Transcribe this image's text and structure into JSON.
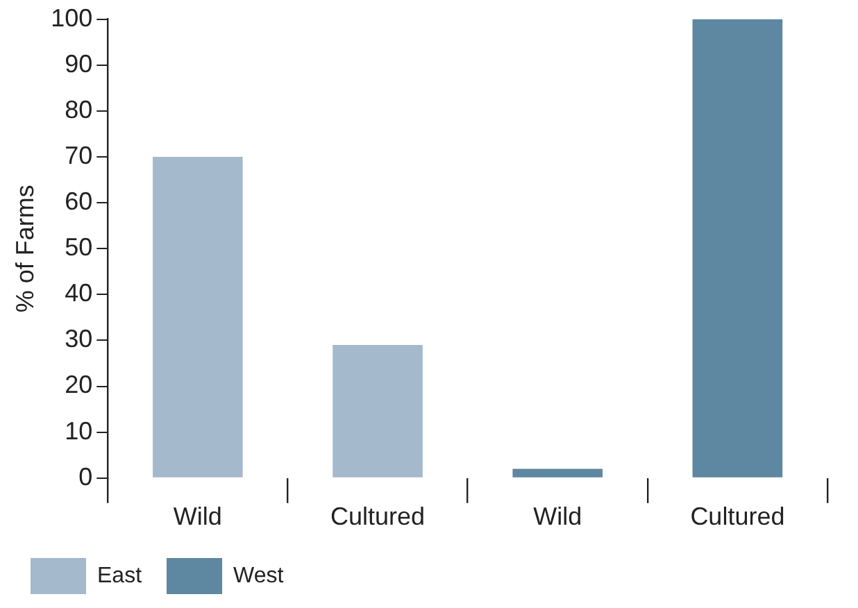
{
  "chart_data": {
    "type": "bar",
    "ylabel": "% of Farms",
    "categories": [
      "Wild",
      "Cultured",
      "Wild",
      "Cultured"
    ],
    "series": [
      {
        "name": "East",
        "color": "#a5b9cd",
        "values": [
          70,
          29,
          null,
          null
        ]
      },
      {
        "name": "West",
        "color": "#5e87a1",
        "values": [
          null,
          null,
          2,
          100
        ]
      }
    ],
    "ylim": [
      0,
      100
    ],
    "yticks": [
      0,
      10,
      20,
      30,
      40,
      50,
      60,
      70,
      80,
      90,
      100
    ],
    "grid": false,
    "legend": "bottom left"
  }
}
